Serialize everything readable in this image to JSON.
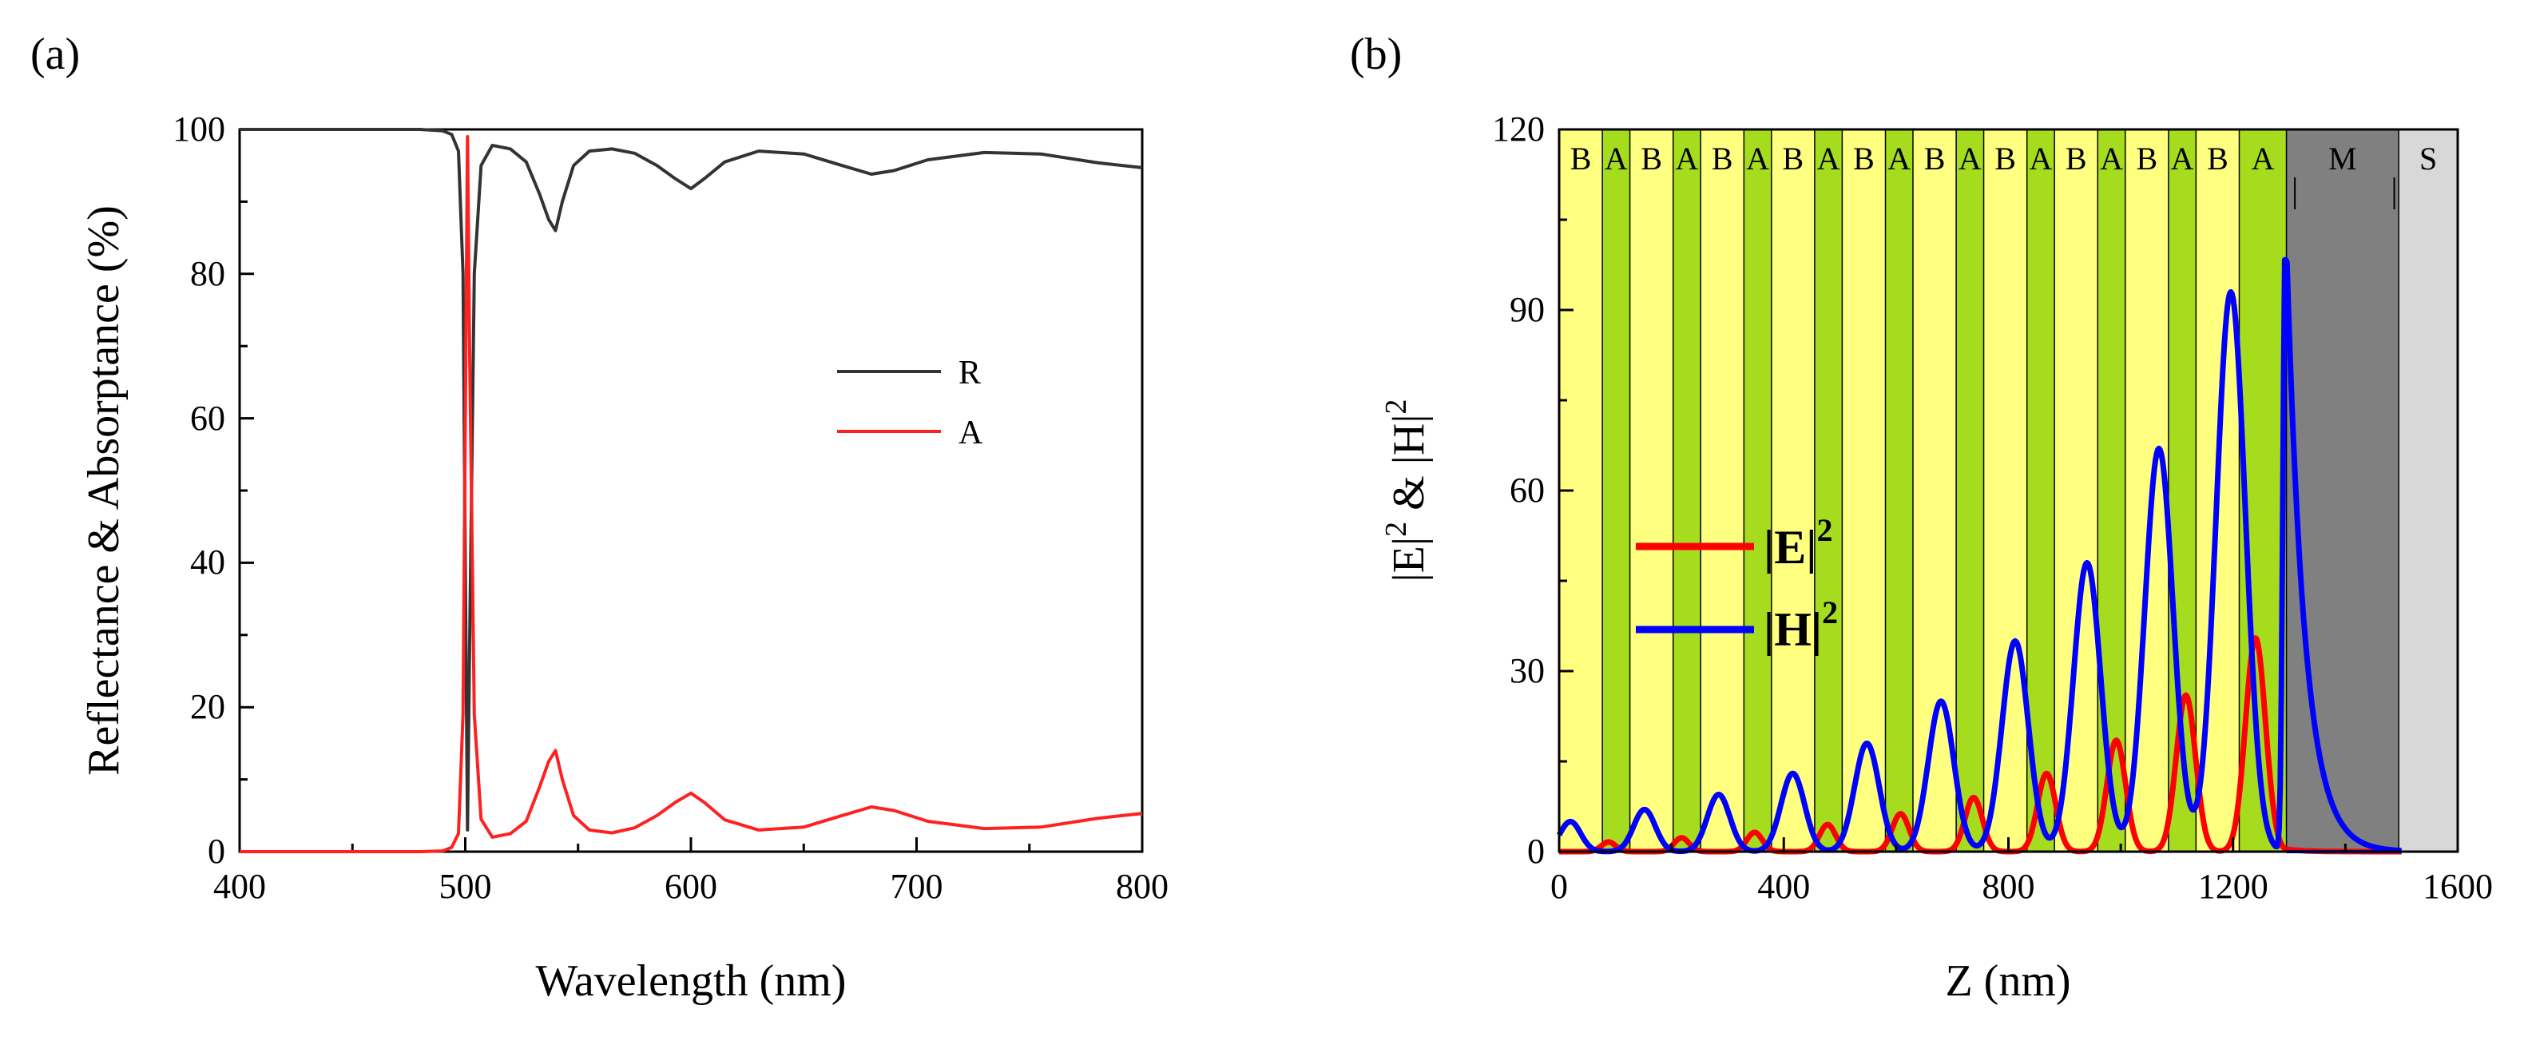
{
  "chart_data": [
    {
      "id": "a",
      "type": "line",
      "panel_label": "(a)",
      "xlabel": "Wavelength (nm)",
      "ylabel": "Reflectance & Absorptance (%)",
      "xlim": [
        400,
        800
      ],
      "ylim": [
        0,
        100
      ],
      "xticks": [
        "400",
        "500",
        "600",
        "700",
        "800"
      ],
      "yticks": [
        "0",
        "20",
        "40",
        "60",
        "80",
        "100"
      ],
      "legend_position": "center-right",
      "series": [
        {
          "name": "R",
          "color": "#333333",
          "x": [
            400,
            480,
            490,
            494,
            497,
            499,
            500,
            501,
            502,
            504,
            507,
            512,
            520,
            527,
            533,
            537,
            540,
            543,
            548,
            555,
            565,
            575,
            585,
            593,
            600,
            606,
            615,
            630,
            650,
            667,
            680,
            690,
            705,
            730,
            755,
            780,
            800
          ],
          "y": [
            100,
            100,
            99.8,
            99.3,
            97,
            80,
            40,
            3,
            30,
            80,
            95,
            97.8,
            97.3,
            95.5,
            91,
            87.5,
            86,
            90,
            95,
            97,
            97.3,
            96.7,
            95,
            93.2,
            91.8,
            93.2,
            95.5,
            97,
            96.6,
            95,
            93.8,
            94.3,
            95.8,
            96.8,
            96.6,
            95.4,
            94.7
          ]
        },
        {
          "name": "A",
          "color": "#ff2020",
          "x": [
            400,
            480,
            490,
            494,
            497,
            499,
            500,
            501,
            502,
            504,
            507,
            512,
            520,
            527,
            533,
            537,
            540,
            543,
            548,
            555,
            565,
            575,
            585,
            593,
            600,
            606,
            615,
            630,
            650,
            667,
            680,
            690,
            705,
            730,
            755,
            780,
            800
          ],
          "y": [
            0,
            0,
            0.1,
            0.6,
            2.5,
            19,
            59,
            99,
            68,
            19,
            4.5,
            2,
            2.5,
            4.2,
            9,
            12.5,
            14,
            10,
            5,
            3,
            2.6,
            3.3,
            5,
            6.8,
            8.1,
            6.8,
            4.4,
            3,
            3.4,
            5,
            6.2,
            5.7,
            4.2,
            3.2,
            3.4,
            4.6,
            5.3
          ]
        }
      ]
    },
    {
      "id": "b",
      "type": "line",
      "panel_label": "(b)",
      "xlabel": "Z (nm)",
      "ylabel": "|E|² & |H|²",
      "xlim": [
        0,
        1600
      ],
      "ylim": [
        0,
        120
      ],
      "xticks": [
        "0",
        "400",
        "800",
        "1200",
        "1600"
      ],
      "yticks": [
        "0",
        "30",
        "60",
        "90",
        "120"
      ],
      "legend_position": "center-left",
      "layers": [
        {
          "label": "B",
          "start": 0,
          "end": 77,
          "color": "#ffff80"
        },
        {
          "label": "A",
          "start": 77,
          "end": 126,
          "color": "#a6dc1e"
        },
        {
          "label": "B",
          "start": 126,
          "end": 203,
          "color": "#ffff80"
        },
        {
          "label": "A",
          "start": 203,
          "end": 252,
          "color": "#a6dc1e"
        },
        {
          "label": "B",
          "start": 252,
          "end": 329,
          "color": "#ffff80"
        },
        {
          "label": "A",
          "start": 329,
          "end": 378,
          "color": "#a6dc1e"
        },
        {
          "label": "B",
          "start": 378,
          "end": 455,
          "color": "#ffff80"
        },
        {
          "label": "A",
          "start": 455,
          "end": 504,
          "color": "#a6dc1e"
        },
        {
          "label": "B",
          "start": 504,
          "end": 581,
          "color": "#ffff80"
        },
        {
          "label": "A",
          "start": 581,
          "end": 630,
          "color": "#a6dc1e"
        },
        {
          "label": "B",
          "start": 630,
          "end": 707,
          "color": "#ffff80"
        },
        {
          "label": "A",
          "start": 707,
          "end": 756,
          "color": "#a6dc1e"
        },
        {
          "label": "B",
          "start": 756,
          "end": 833,
          "color": "#ffff80"
        },
        {
          "label": "A",
          "start": 833,
          "end": 882,
          "color": "#a6dc1e"
        },
        {
          "label": "B",
          "start": 882,
          "end": 959,
          "color": "#ffff80"
        },
        {
          "label": "A",
          "start": 959,
          "end": 1008,
          "color": "#a6dc1e"
        },
        {
          "label": "B",
          "start": 1008,
          "end": 1085,
          "color": "#ffff80"
        },
        {
          "label": "A",
          "start": 1085,
          "end": 1134,
          "color": "#a6dc1e"
        },
        {
          "label": "B",
          "start": 1134,
          "end": 1211,
          "color": "#ffff80"
        },
        {
          "label": "A",
          "start": 1211,
          "end": 1295,
          "color": "#a6dc1e"
        },
        {
          "label": "M",
          "start": 1295,
          "end": 1495,
          "color": "#808080"
        },
        {
          "label": "S",
          "start": 1495,
          "end": 1600,
          "color": "#d8d8d8"
        }
      ],
      "series": [
        {
          "name": "|E|²",
          "color": "#ff0000",
          "envelope": "E",
          "x_start": 0,
          "x_end": 1295,
          "peaks": [
            1.6,
            2.3,
            3.2,
            4.5,
            6.3,
            9,
            13,
            18.5,
            26,
            35.5
          ]
        },
        {
          "name": "|H|²",
          "color": "#0000ff",
          "envelope": "H",
          "x_start": 0,
          "x_end": 1295,
          "peaks": [
            5,
            7,
            9.5,
            13,
            18,
            25,
            35,
            48,
            67,
            93,
            101
          ]
        }
      ]
    }
  ],
  "legend_a": {
    "r": "R",
    "a": "A"
  },
  "legend_b": {
    "e_base": "|E|",
    "e_sup": "2",
    "h_base": "|H|",
    "h_sup": "2"
  },
  "axis_b": {
    "ylabel_e": "|E|",
    "ylabel_sup1": "2",
    "ylabel_amp": " & |H|",
    "ylabel_sup2": "2"
  }
}
